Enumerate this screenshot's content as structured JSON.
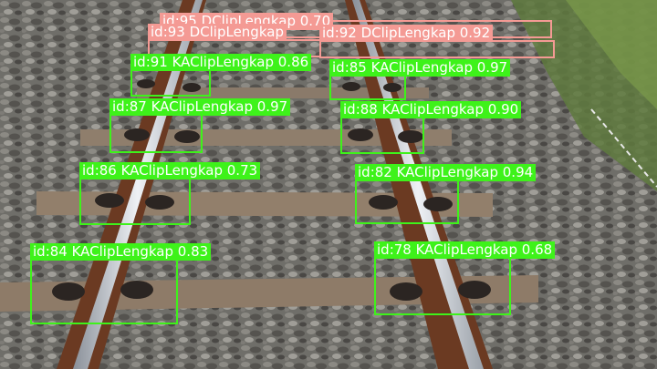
{
  "image": {
    "description_tag": "railway-track-photo",
    "colors": {
      "ka_clip": "#3ef21a",
      "d_clip": "#f49a94"
    }
  },
  "detections": [
    {
      "label": "id:95 DClipLengkap 0.70",
      "class": "DClipLengkap"
    },
    {
      "label": "id:92 DClipLengkap 0.92",
      "class": "DClipLengkap"
    },
    {
      "label": "id:93 DClipLengkap",
      "class": "DClipLengkap"
    },
    {
      "label": "id:91 KAClipLengkap 0.86",
      "class": "KAClipLengkap"
    },
    {
      "label": "id:85 KAClipLengkap 0.97",
      "class": "KAClipLengkap"
    },
    {
      "label": "id:87 KAClipLengkap 0.97",
      "class": "KAClipLengkap"
    },
    {
      "label": "id:88 KAClipLengkap 0.90",
      "class": "KAClipLengkap"
    },
    {
      "label": "id:86 KAClipLengkap 0.73",
      "class": "KAClipLengkap"
    },
    {
      "label": "id:82 KAClipLengkap 0.94",
      "class": "KAClipLengkap"
    },
    {
      "label": "id:84 KAClipLengkap 0.83",
      "class": "KAClipLengkap"
    },
    {
      "label": "id:78 KAClipLengkap 0.68",
      "class": "KAClipLengkap"
    }
  ]
}
